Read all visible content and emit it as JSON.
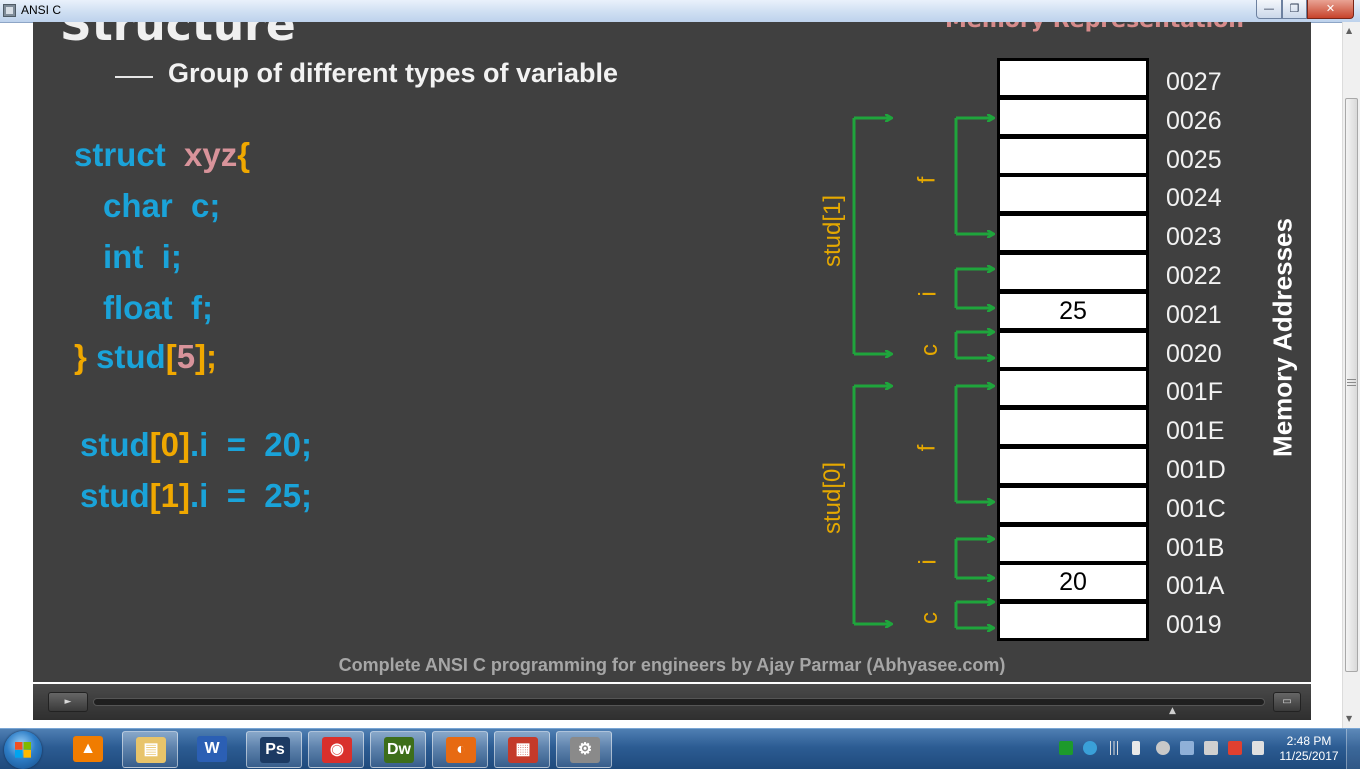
{
  "window": {
    "title": "ANSI C",
    "minimize_glyph": "—",
    "maximize_glyph": "❐",
    "close_glyph": "✕"
  },
  "slide": {
    "title": "Structure",
    "subtitle": "Memory Representation",
    "bullet": "Group of different types of variable",
    "code": {
      "line1_kw": "struct",
      "line1_name": "xyz",
      "line1_brace": "{",
      "line2": "char  c;",
      "line3": "int  i;",
      "line4": "float  f;",
      "line5_brace": "}",
      "line5_name": "stud",
      "line5_lb": "[",
      "line5_idx": "5",
      "line5_rb": "];",
      "assign1_name": "stud",
      "assign1_idx": "[0]",
      "assign1_rest": ".i  =  20;",
      "assign2_name": "stud",
      "assign2_idx": "[1]",
      "assign2_rest": ".i  =  25;"
    },
    "memory": {
      "axis_label": "Memory Addresses",
      "cells": [
        {
          "addr": "0027",
          "value": ""
        },
        {
          "addr": "0026",
          "value": ""
        },
        {
          "addr": "0025",
          "value": ""
        },
        {
          "addr": "0024",
          "value": ""
        },
        {
          "addr": "0023",
          "value": ""
        },
        {
          "addr": "0022",
          "value": ""
        },
        {
          "addr": "0021",
          "value": "25"
        },
        {
          "addr": "0020",
          "value": ""
        },
        {
          "addr": "001F",
          "value": ""
        },
        {
          "addr": "001E",
          "value": ""
        },
        {
          "addr": "001D",
          "value": ""
        },
        {
          "addr": "001C",
          "value": ""
        },
        {
          "addr": "001B",
          "value": ""
        },
        {
          "addr": "001A",
          "value": "20"
        },
        {
          "addr": "0019",
          "value": ""
        }
      ],
      "members": {
        "stud1": "stud[1]",
        "stud0": "stud[0]",
        "f": "f",
        "i": "i",
        "c": "c"
      },
      "colors": {
        "arrow": "#1fa53c",
        "label": "#e5a800"
      }
    },
    "footer": "Complete ANSI C programming for engineers by Ajay Parmar (Abhyasee.com)"
  },
  "player": {
    "play_glyph": "►",
    "fullscreen_glyph": "▭",
    "seek_marker": "▲"
  },
  "taskbar": {
    "apps": [
      {
        "name": "vlc",
        "glyph": "▲",
        "color": "#f07c00"
      },
      {
        "name": "explorer",
        "glyph": "▤",
        "color": "#e8c46a"
      },
      {
        "name": "word",
        "glyph": "W",
        "color": "#2b5fb4"
      },
      {
        "name": "photoshop",
        "glyph": "Ps",
        "color": "#1c3a63"
      },
      {
        "name": "chrome",
        "glyph": "◉",
        "color": "#d9302c"
      },
      {
        "name": "dreamweaver",
        "glyph": "Dw",
        "color": "#3d6e1a"
      },
      {
        "name": "firefox",
        "glyph": "◐",
        "color": "#e76a12"
      },
      {
        "name": "windows-app",
        "glyph": "▦",
        "color": "#c43a2a"
      },
      {
        "name": "settings-app",
        "glyph": "⚙",
        "color": "#8a8a8a"
      }
    ],
    "clock_time": "2:48 PM",
    "clock_date": "11/25/2017"
  }
}
